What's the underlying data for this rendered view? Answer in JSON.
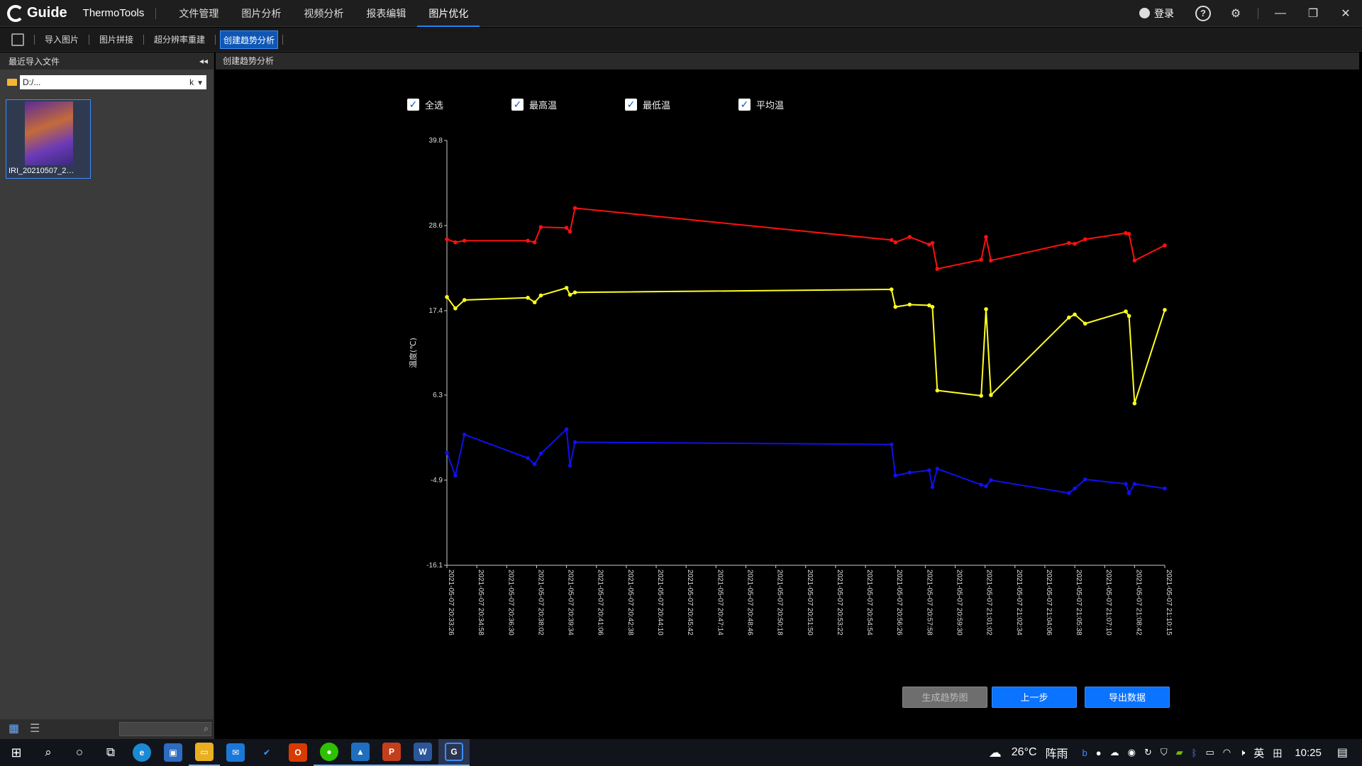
{
  "titlebar": {
    "app_name": "ThermoTools",
    "logo_text": "Guide",
    "menu": [
      "文件管理",
      "图片分析",
      "视频分析",
      "报表编辑",
      "图片优化"
    ],
    "active_menu_index": 4,
    "login_label": "登录"
  },
  "toolbar": {
    "items": [
      "导入图片",
      "图片拼接",
      "超分辨率重建",
      "创建趋势分析"
    ],
    "active_index": 3
  },
  "left_panel": {
    "header": "最近导入文件",
    "path_value": "D:/...",
    "path_suffix": "k",
    "thumbnail_label": "IRI_20210507_2…"
  },
  "main": {
    "header": "创建趋势分析",
    "checkboxes": [
      {
        "label": "全选",
        "checked": true
      },
      {
        "label": "最高温",
        "checked": true
      },
      {
        "label": "最低温",
        "checked": true
      },
      {
        "label": "平均温",
        "checked": true
      }
    ],
    "buttons": {
      "generate": "生成趋势图",
      "previous": "上一步",
      "export": "导出数据"
    }
  },
  "chart_data": {
    "type": "line",
    "ylabel": "温度(℃)",
    "yticks": [
      39.8,
      28.6,
      17.4,
      6.3,
      -4.9,
      -16.1
    ],
    "ylim": [
      -16.1,
      39.8
    ],
    "xticks": [
      "2021-05-07 20:33:26",
      "2021-05-07 20:34:58",
      "2021-05-07 20:36:30",
      "2021-05-07 20:38:02",
      "2021-05-07 20:39:34",
      "2021-05-07 20:41:06",
      "2021-05-07 20:42:38",
      "2021-05-07 20:44:10",
      "2021-05-07 20:45:42",
      "2021-05-07 20:47:14",
      "2021-05-07 20:48:46",
      "2021-05-07 20:50:18",
      "2021-05-07 20:51:50",
      "2021-05-07 20:53:22",
      "2021-05-07 20:54:54",
      "2021-05-07 20:56:26",
      "2021-05-07 20:57:58",
      "2021-05-07 20:59:30",
      "2021-05-07 21:01:02",
      "2021-05-07 21:02:34",
      "2021-05-07 21:04:06",
      "2021-05-07 21:05:38",
      "2021-05-07 21:07:10",
      "2021-05-07 21:08:42",
      "2021-05-07 21:10:15"
    ],
    "x": [
      "2021-05-07 20:33:26",
      "2021-05-07 20:33:52",
      "2021-05-07 20:34:20",
      "2021-05-07 20:37:35",
      "2021-05-07 20:37:56",
      "2021-05-07 20:38:15",
      "2021-05-07 20:39:34",
      "2021-05-07 20:39:45",
      "2021-05-07 20:40:00",
      "2021-05-07 20:56:14",
      "2021-05-07 20:56:26",
      "2021-05-07 20:57:10",
      "2021-05-07 20:58:10",
      "2021-05-07 20:58:20",
      "2021-05-07 20:58:35",
      "2021-05-07 21:00:50",
      "2021-05-07 21:01:05",
      "2021-05-07 21:01:20",
      "2021-05-07 21:05:20",
      "2021-05-07 21:05:38",
      "2021-05-07 21:06:10",
      "2021-05-07 21:08:15",
      "2021-05-07 21:08:25",
      "2021-05-07 21:08:42",
      "2021-05-07 21:10:15"
    ],
    "series": [
      {
        "name": "最高温",
        "color": "#ff1010",
        "values": [
          26.8,
          26.4,
          26.6,
          26.6,
          26.4,
          28.4,
          28.3,
          27.8,
          30.9,
          26.7,
          26.4,
          27.1,
          26.1,
          26.3,
          22.9,
          24.1,
          27.1,
          24.0,
          26.3,
          26.2,
          26.8,
          27.6,
          27.5,
          24.0,
          26.0
        ]
      },
      {
        "name": "最低温",
        "color": "#ffff20",
        "values": [
          19.2,
          17.7,
          18.8,
          19.1,
          18.5,
          19.4,
          20.4,
          19.5,
          19.8,
          20.2,
          17.9,
          18.2,
          18.1,
          17.9,
          6.9,
          6.2,
          17.6,
          6.3,
          16.5,
          16.9,
          15.7,
          17.3,
          16.7,
          5.2,
          17.5
        ]
      },
      {
        "name": "平均温",
        "color": "#1010ee",
        "values": [
          -1.3,
          -4.3,
          1.1,
          -2.0,
          -2.8,
          -1.4,
          1.8,
          -3.0,
          0.1,
          -0.2,
          -4.3,
          -3.9,
          -3.6,
          -5.8,
          -3.4,
          -5.5,
          -5.7,
          -4.9,
          -6.6,
          -6.0,
          -4.8,
          -5.4,
          -6.6,
          -5.4,
          -6.0
        ]
      }
    ]
  },
  "taskbar": {
    "weather_temp": "26°C",
    "weather_text": "阵雨",
    "ime": "英",
    "clock": "10:25"
  }
}
